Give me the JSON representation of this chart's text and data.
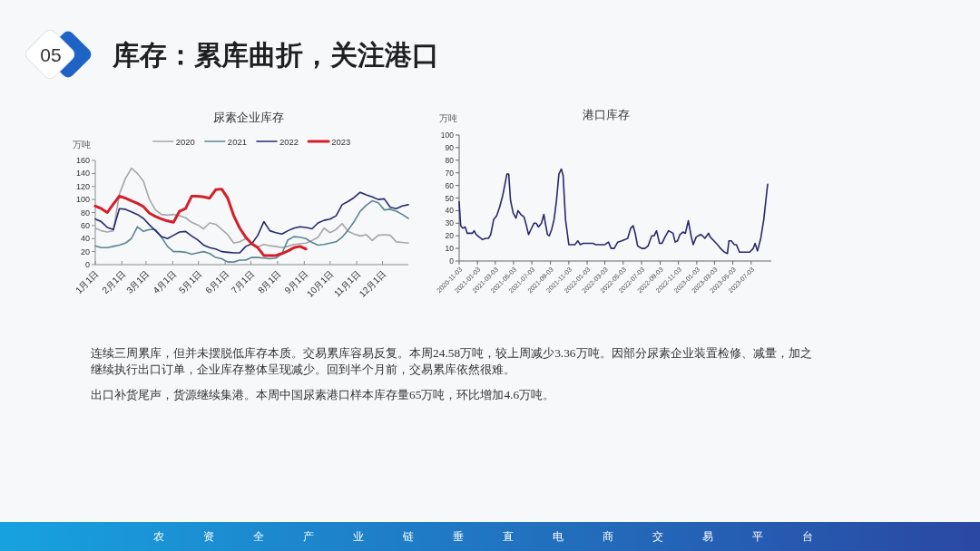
{
  "chart_data": [
    {
      "type": "other",
      "title": "库存：累库曲折，关注港口",
      "annotations": [
        "05"
      ]
    },
    {
      "type": "line",
      "title": "尿素企业库存",
      "ylabel": "万吨",
      "legend": "top",
      "x": [
        "--01-01",
        "--01-08",
        "--01-15",
        "--01-22",
        "--01-29",
        "--02-05",
        "--02-12",
        "--02-19",
        "--02-26",
        "--03-05",
        "--03-12",
        "--03-19",
        "--03-26",
        "--04-02",
        "--04-09",
        "--04-16",
        "--04-23",
        "--04-30",
        "--05-07",
        "--05-14",
        "--05-21",
        "--05-28",
        "--06-04",
        "--06-11",
        "--06-18",
        "--06-25",
        "--07-02",
        "--07-09",
        "--07-16",
        "--07-23",
        "--07-30",
        "--08-06",
        "--08-13",
        "--08-20",
        "--08-27",
        "--09-03",
        "--09-10",
        "--09-17",
        "--09-24",
        "--10-01",
        "--10-08",
        "--10-15",
        "--10-22",
        "--10-29",
        "--11-05",
        "--11-12",
        "--11-19",
        "--11-26",
        "--12-03",
        "--12-10",
        "--12-17",
        "--12-24",
        "--12-31"
      ],
      "xlim": [
        "--01-01",
        "--12-31"
      ],
      "xticks": [
        {
          "value": "--01-01",
          "label": "1月1日"
        },
        {
          "value": "--02-01",
          "label": "2月1日"
        },
        {
          "value": "--03-01",
          "label": "3月1日"
        },
        {
          "value": "--04-01",
          "label": "4月1日"
        },
        {
          "value": "--05-01",
          "label": "5月1日"
        },
        {
          "value": "--06-01",
          "label": "6月1日"
        },
        {
          "value": "--07-01",
          "label": "7月1日"
        },
        {
          "value": "--08-01",
          "label": "8月1日"
        },
        {
          "value": "--09-01",
          "label": "9月1日"
        },
        {
          "value": "--10-01",
          "label": "10月1日"
        },
        {
          "value": "--11-01",
          "label": "11月1日"
        },
        {
          "value": "--12-01",
          "label": "12月1日"
        }
      ],
      "ylim": [
        0,
        160
      ],
      "yticks": [
        0,
        20,
        40,
        60,
        80,
        100,
        120,
        140,
        160
      ],
      "series": [
        {
          "name": "2020",
          "color": "#a6a6a6",
          "values": [
            56,
            52,
            50,
            52,
            108,
            132,
            148,
            140,
            128,
            100,
            84,
            77,
            76,
            77,
            75,
            72,
            65,
            61,
            55,
            64,
            62,
            54,
            46,
            33,
            35,
            40,
            33,
            27,
            31,
            29,
            28,
            26,
            28,
            31,
            32,
            33,
            37,
            42,
            56,
            49,
            54,
            63,
            51,
            47,
            44,
            46,
            37,
            45,
            46,
            45,
            35,
            34,
            33
          ]
        },
        {
          "name": "2021",
          "color": "#5b8591",
          "values": [
            29,
            26,
            26,
            28,
            30,
            33,
            40,
            58,
            51,
            54,
            54,
            42,
            28,
            20,
            20,
            19,
            16,
            18,
            20,
            17,
            11,
            9,
            4,
            4,
            7,
            7,
            11,
            11,
            10,
            9,
            10,
            17,
            38,
            43,
            42,
            40,
            34,
            30,
            31,
            33,
            35,
            42,
            53,
            66,
            82,
            91,
            98,
            95,
            84,
            85,
            82,
            77,
            71
          ]
        },
        {
          "name": "2022",
          "color": "#272a6c",
          "values": [
            70,
            66,
            57,
            54,
            86,
            85,
            81,
            77,
            71,
            61,
            52,
            43,
            40,
            45,
            50,
            51,
            44,
            38,
            30,
            26,
            24,
            20,
            19,
            18,
            18,
            28,
            32,
            45,
            66,
            52,
            49,
            47,
            52,
            56,
            58,
            57,
            55,
            64,
            68,
            70,
            75,
            92,
            97,
            103,
            111,
            107,
            104,
            100,
            101,
            88,
            86,
            90,
            92
          ]
        },
        {
          "name": "2023",
          "color": "#d41f2a",
          "values": [
            90,
            86,
            80,
            93,
            105,
            102,
            98,
            94,
            89,
            79,
            74,
            70,
            67,
            65,
            82,
            86,
            105,
            105,
            104,
            102,
            115,
            116,
            102,
            75,
            56,
            42,
            32,
            26,
            14,
            14,
            14,
            17,
            21,
            26,
            28,
            24,
            null,
            null,
            null,
            null,
            null,
            null,
            null,
            null,
            null,
            null,
            null,
            null,
            null,
            null,
            null,
            null,
            null
          ]
        }
      ]
    },
    {
      "type": "line",
      "title": "港口库存",
      "ylabel": "万吨",
      "x": [
        "2020-11-03",
        "2020-11-08",
        "2020-11-15",
        "2020-11-23",
        "2020-11-30",
        "2020-12-10",
        "2020-12-17",
        "2020-12-23",
        "2020-12-30",
        "2021-01-09",
        "2021-01-20",
        "2021-01-30",
        "2021-02-09",
        "2021-02-16",
        "2021-02-26",
        "2021-03-08",
        "2021-03-18",
        "2021-03-28",
        "2021-04-07",
        "2021-04-11",
        "2021-04-17",
        "2021-04-23",
        "2021-05-02",
        "2021-05-11",
        "2021-05-18",
        "2021-05-27",
        "2021-06-07",
        "2021-06-15",
        "2021-06-22",
        "2021-06-30",
        "2021-07-10",
        "2021-07-17",
        "2021-07-25",
        "2021-08-04",
        "2021-08-12",
        "2021-08-17",
        "2021-08-24",
        "2021-08-30",
        "2021-09-07",
        "2021-09-15",
        "2021-09-23",
        "2021-10-01",
        "2021-10-09",
        "2021-10-15",
        "2021-10-23",
        "2021-11-03",
        "2021-11-13",
        "2021-11-23",
        "2021-12-03",
        "2021-12-11",
        "2021-12-21",
        "2022-01-02",
        "2022-01-12",
        "2022-01-22",
        "2022-02-01",
        "2022-02-16",
        "2022-03-03",
        "2022-03-15",
        "2022-03-24",
        "2022-04-03",
        "2022-04-15",
        "2022-04-28",
        "2022-05-09",
        "2022-05-18",
        "2022-05-28",
        "2022-06-05",
        "2022-06-12",
        "2022-06-20",
        "2022-06-27",
        "2022-07-04",
        "2022-07-14",
        "2022-07-25",
        "2022-08-06",
        "2022-08-14",
        "2022-08-22",
        "2022-09-01",
        "2022-09-09",
        "2022-09-19",
        "2022-10-01",
        "2022-10-16",
        "2022-10-23",
        "2022-10-31",
        "2022-11-08",
        "2022-11-18",
        "2022-11-26",
        "2022-12-06",
        "2022-12-15",
        "2022-12-22",
        "2023-01-01",
        "2023-01-15",
        "2023-01-22",
        "2023-01-30",
        "2023-02-11",
        "2023-02-17",
        "2023-03-01",
        "2023-03-13",
        "2023-03-23",
        "2023-04-05",
        "2023-04-15",
        "2023-04-20",
        "2023-04-28",
        "2023-05-08",
        "2023-05-15",
        "2023-05-25",
        "2023-06-08",
        "2023-06-18",
        "2023-06-28",
        "2023-07-10",
        "2023-07-16",
        "2023-07-24",
        "2023-08-04",
        "2023-08-14",
        "2023-08-24",
        "2023-08-27"
      ],
      "xlim": [
        "2020-11-03",
        "2023-09-08"
      ],
      "xticks": [
        "2020-11-03",
        "2021-01-03",
        "2021-03-03",
        "2021-05-03",
        "2021-07-03",
        "2021-09-03",
        "2021-11-03",
        "2022-01-03",
        "2022-03-03",
        "2022-05-03",
        "2022-07-03",
        "2022-09-03",
        "2022-11-03",
        "2023-01-03",
        "2023-03-03",
        "2023-05-03",
        "2023-07-03"
      ],
      "ylim": [
        0,
        100
      ],
      "yticks": [
        0,
        10,
        20,
        30,
        40,
        50,
        60,
        70,
        80,
        90,
        100
      ],
      "series": [
        {
          "color": "#29296a",
          "values": [
            47,
            28,
            26,
            27,
            22,
            22,
            22,
            24,
            21,
            19,
            17,
            18,
            18,
            21,
            33,
            36,
            43,
            52,
            64,
            69,
            69,
            48,
            38,
            34,
            40,
            37,
            35,
            28,
            21,
            25,
            30,
            30,
            27,
            30,
            37,
            30,
            21,
            20,
            25,
            33,
            48,
            69,
            73,
            68,
            33,
            13,
            13,
            13,
            16,
            13,
            14,
            14,
            14,
            14,
            13,
            13,
            13,
            15,
            10,
            10,
            15,
            16,
            17,
            18,
            26,
            28,
            22,
            12,
            11,
            10,
            10,
            12,
            20,
            20,
            24,
            14,
            14,
            19,
            24,
            22,
            15,
            16,
            21,
            23,
            22,
            32,
            20,
            13,
            19,
            21,
            20,
            18,
            22,
            19,
            16,
            13,
            10,
            7,
            6,
            16,
            16,
            13,
            13,
            7,
            7,
            7,
            7,
            10,
            14,
            8,
            18,
            33,
            55,
            61
          ]
        }
      ]
    },
    {
      "type": "other",
      "annotations": [
        "连续三周累库，但并未摆脱低库存本质。交易累库容易反复。本周24.58万吨，较上周减少3.36万吨。因部分尿素企业装置检修、减量，加之继续执行出口订单，企业库存整体呈现减少。回到半个月前，交易累库依然很难。",
        "出口补货尾声，货源继续集港。本周中国尿素港口样本库存量65万吨，环比增加4.6万吨。",
        "农资全产业链垂直电商交易平台"
      ]
    }
  ]
}
